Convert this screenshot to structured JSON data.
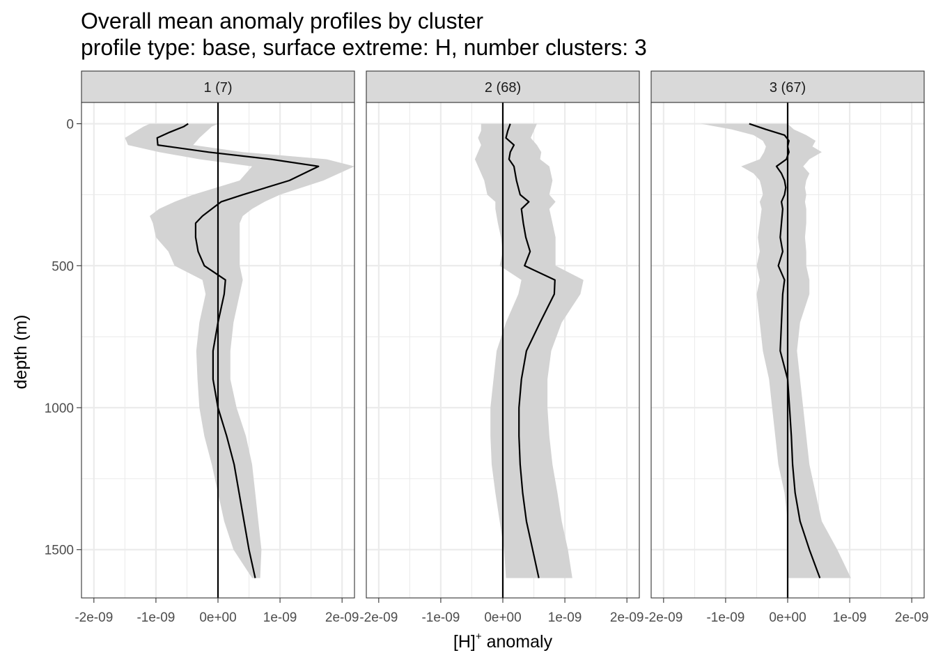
{
  "chart_data": {
    "type": "line",
    "title": "Overall mean anomaly profiles by cluster",
    "subtitle": "profile type: base, surface extreme: H, number clusters: 3",
    "xlabel": "[H]",
    "xlabel_superscript": "+",
    "xlabel_suffix": " anomaly",
    "ylabel": "depth (m)",
    "xlim": [
      -2.2e-09,
      2.2e-09
    ],
    "ylim": [
      1670,
      -75
    ],
    "x_ticks": [
      -2e-09,
      -1e-09,
      0,
      1e-09,
      2e-09
    ],
    "x_tick_labels": [
      "-2e-09",
      "-1e-09",
      "0e+00",
      "1e-09",
      "2e-09"
    ],
    "y_ticks": [
      0,
      500,
      1000,
      1500
    ],
    "y_tick_labels": [
      "0",
      "500",
      "1000",
      "1500"
    ],
    "grid": true,
    "reference_line_x": 0,
    "colors": {
      "line": "#000000",
      "ribbon": "#d3d3d3",
      "strip": "#d9d9d9",
      "grid": "#ebebeb",
      "border": "#333333"
    },
    "panels": [
      {
        "strip": "1 (7)",
        "depth": [
          0,
          10,
          30,
          50,
          75,
          100,
          125,
          150,
          200,
          250,
          275,
          300,
          325,
          350,
          400,
          450,
          500,
          550,
          600,
          700,
          800,
          900,
          1000,
          1100,
          1200,
          1300,
          1400,
          1500,
          1600
        ],
        "mean": [
          -4.8e-10,
          -5.5e-10,
          -7.8e-10,
          -9.8e-10,
          -9.7e-10,
          -1.5e-10,
          8.5e-10,
          1.62e-09,
          1.15e-09,
          4e-10,
          5e-11,
          -1e-10,
          -2.5e-10,
          -3.6e-10,
          -3.6e-10,
          -3.2e-10,
          -2.2e-10,
          1.2e-10,
          1e-10,
          0.0,
          -8e-11,
          -8e-11,
          0.0,
          1.4e-10,
          2.6e-10,
          3.4e-10,
          4.2e-10,
          5e-10,
          6e-10
        ],
        "lower": [
          -1.1e-09,
          -1.2e-09,
          -1.35e-09,
          -1.5e-09,
          -1.45e-09,
          -9.5e-10,
          -3e-10,
          5.5e-10,
          3.5e-10,
          -4e-10,
          -7e-10,
          -9.5e-10,
          -1.1e-09,
          -1.05e-09,
          -1e-09,
          -8e-10,
          -7e-10,
          -2.5e-10,
          -2e-10,
          -3e-10,
          -3.5e-10,
          -3.3e-10,
          -3e-10,
          -2.2e-10,
          -1e-10,
          0.0,
          1e-10,
          2.5e-10,
          5.5e-10
        ],
        "upper": [
          0.0,
          -1e-10,
          -2e-10,
          -3e-10,
          -4e-10,
          4e-10,
          1.75e-09,
          2.2e-09,
          1.7e-09,
          1e-09,
          7.5e-10,
          5.5e-10,
          4e-10,
          3.5e-10,
          3.5e-10,
          3.5e-10,
          3.5e-10,
          4e-10,
          3.5e-10,
          2.5e-10,
          2e-10,
          2e-10,
          3e-10,
          4.5e-10,
          5.5e-10,
          6e-10,
          6.5e-10,
          7e-10,
          6.8e-10
        ]
      },
      {
        "strip": "2 (68)",
        "depth": [
          0,
          25,
          50,
          75,
          100,
          125,
          150,
          200,
          250,
          275,
          300,
          350,
          400,
          450,
          500,
          550,
          600,
          700,
          800,
          900,
          1000,
          1100,
          1200,
          1300,
          1400,
          1500,
          1600
        ],
        "mean": [
          1.2e-10,
          8e-11,
          5e-11,
          1.8e-10,
          1.2e-10,
          1e-10,
          1.8e-10,
          2.2e-10,
          2.8e-10,
          4.2e-10,
          3e-10,
          3.3e-10,
          3.7e-10,
          4.4e-10,
          3.5e-10,
          8.4e-10,
          8.3e-10,
          6e-10,
          3.8e-10,
          3e-10,
          2.6e-10,
          2.6e-10,
          2.8e-10,
          3.2e-10,
          3.8e-10,
          4.8e-10,
          5.8e-10
        ],
        "lower": [
          -3.5e-10,
          -3.5e-10,
          -4e-10,
          -3.5e-10,
          -4e-10,
          -4.5e-10,
          -4e-10,
          -3e-10,
          -2.5e-10,
          -1.2e-10,
          -1.2e-10,
          -8e-11,
          -3e-11,
          0.0,
          -5e-11,
          3e-10,
          2.5e-10,
          5e-11,
          -1e-10,
          -1.5e-10,
          -2e-10,
          -2e-10,
          -1.8e-10,
          -1.2e-10,
          -5e-11,
          2e-11,
          5e-11
        ],
        "upper": [
          5.5e-10,
          5e-10,
          4.5e-10,
          5.5e-10,
          6.2e-10,
          6e-10,
          7.5e-10,
          8e-10,
          7.5e-10,
          8.5e-10,
          7.5e-10,
          8e-10,
          8.5e-10,
          8.5e-10,
          8.5e-10,
          1.3e-09,
          1.25e-09,
          9.5e-10,
          7.8e-10,
          7.2e-10,
          7.2e-10,
          7.5e-10,
          8e-10,
          8.8e-10,
          9.5e-10,
          1.05e-09,
          1.12e-09
        ]
      },
      {
        "strip": "3 (67)",
        "depth": [
          0,
          20,
          40,
          60,
          80,
          100,
          125,
          150,
          175,
          200,
          225,
          250,
          275,
          300,
          350,
          400,
          450,
          500,
          550,
          600,
          700,
          800,
          900,
          1000,
          1100,
          1200,
          1300,
          1400,
          1500,
          1600
        ],
        "mean": [
          -6.2e-10,
          -3.5e-10,
          -5e-11,
          2e-11,
          0.0,
          2e-11,
          -2e-11,
          -1.8e-10,
          -1e-10,
          -5e-11,
          -3e-11,
          -5e-11,
          -1e-10,
          -8e-11,
          -1e-10,
          -1.2e-10,
          -8e-11,
          -1.5e-10,
          -5e-11,
          -8e-11,
          -1e-10,
          -1.2e-10,
          0.0,
          3e-11,
          6e-11,
          8e-11,
          1.2e-10,
          2e-10,
          3.5e-10,
          5.2e-10
        ],
        "lower": [
          -1.4e-09,
          -9e-10,
          -5.5e-10,
          -4e-10,
          -3.5e-10,
          -3.8e-10,
          -4.5e-10,
          -7.5e-10,
          -5.5e-10,
          -4.5e-10,
          -4.2e-10,
          -4e-10,
          -4.5e-10,
          -4.2e-10,
          -4.5e-10,
          -4.8e-10,
          -4.5e-10,
          -5e-10,
          -4.5e-10,
          -5e-10,
          -4.5e-10,
          -4e-10,
          -3e-10,
          -2.5e-10,
          -2e-10,
          -1.5e-10,
          -5e-11,
          0.0,
          0.0,
          0.0
        ],
        "upper": [
          0.0,
          1e-10,
          3e-10,
          4.5e-10,
          4e-10,
          5.5e-10,
          3.5e-10,
          2.5e-10,
          3.5e-10,
          3e-10,
          2.8e-10,
          3e-10,
          2.8e-10,
          3e-10,
          3e-10,
          2.8e-10,
          3e-10,
          3e-10,
          3.5e-10,
          3.5e-10,
          2e-10,
          1.5e-10,
          2e-10,
          2.5e-10,
          3e-10,
          3.5e-10,
          4.5e-10,
          5.5e-10,
          8e-10,
          1.02e-09
        ]
      }
    ]
  }
}
